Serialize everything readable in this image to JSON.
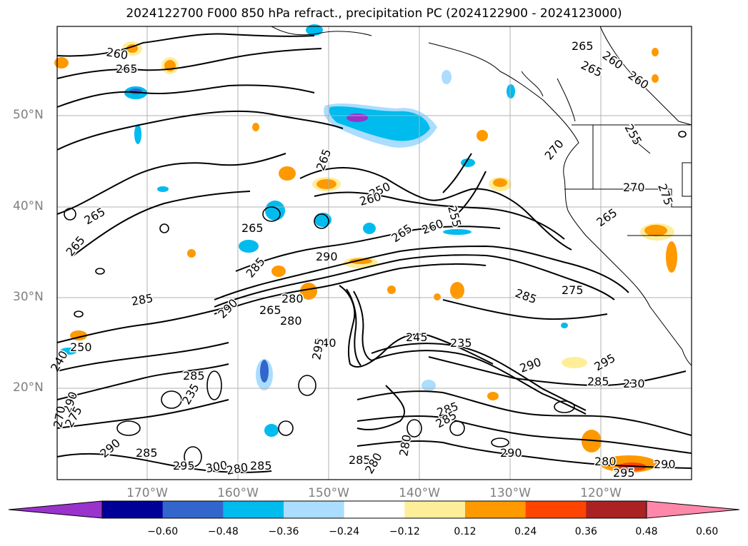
{
  "title": "2024122700 F000 850 hPa refract., precipitation PC (2024122900 - 2024123000)",
  "lat_labels": [
    "50°N",
    "40°N",
    "30°N",
    "20°N"
  ],
  "lon_labels": [
    "170°W",
    "160°W",
    "150°W",
    "140°W",
    "130°W",
    "120°W"
  ],
  "colorbar": {
    "extend": "both",
    "colors": [
      "#9933cc",
      "#000099",
      "#3366cc",
      "#00bbee",
      "#aaddff",
      "#ffffff",
      "#ffee99",
      "#ff9900",
      "#ff4400",
      "#aa2222",
      "#ff88aa"
    ],
    "tick_labels": [
      "−0.60",
      "−0.48",
      "−0.36",
      "−0.24",
      "−0.12",
      "0.12",
      "0.24",
      "0.36",
      "0.48",
      "0.60"
    ]
  },
  "contour_labels": [
    "260",
    "265",
    "265",
    "260",
    "265",
    "260",
    "255",
    "270",
    "265",
    "265",
    "250",
    "260",
    "255",
    "275",
    "270",
    "265",
    "265",
    "265",
    "265",
    "260",
    "290",
    "285",
    "280",
    "285",
    "290",
    "265",
    "280",
    "285",
    "275",
    "245",
    "235",
    "250",
    "240",
    "295",
    "285",
    "290",
    "295",
    "285",
    "240",
    "230",
    "235",
    "290",
    "285",
    "270",
    "275",
    "285",
    "290",
    "285",
    "280",
    "290",
    "295",
    "300",
    "280",
    "285",
    "285",
    "280",
    "295",
    "290",
    "280"
  ],
  "colors": {
    "frame": "#000000",
    "grid": "#b0b0b0",
    "axis_label": "#7f7f7f",
    "contour": "#000000"
  }
}
